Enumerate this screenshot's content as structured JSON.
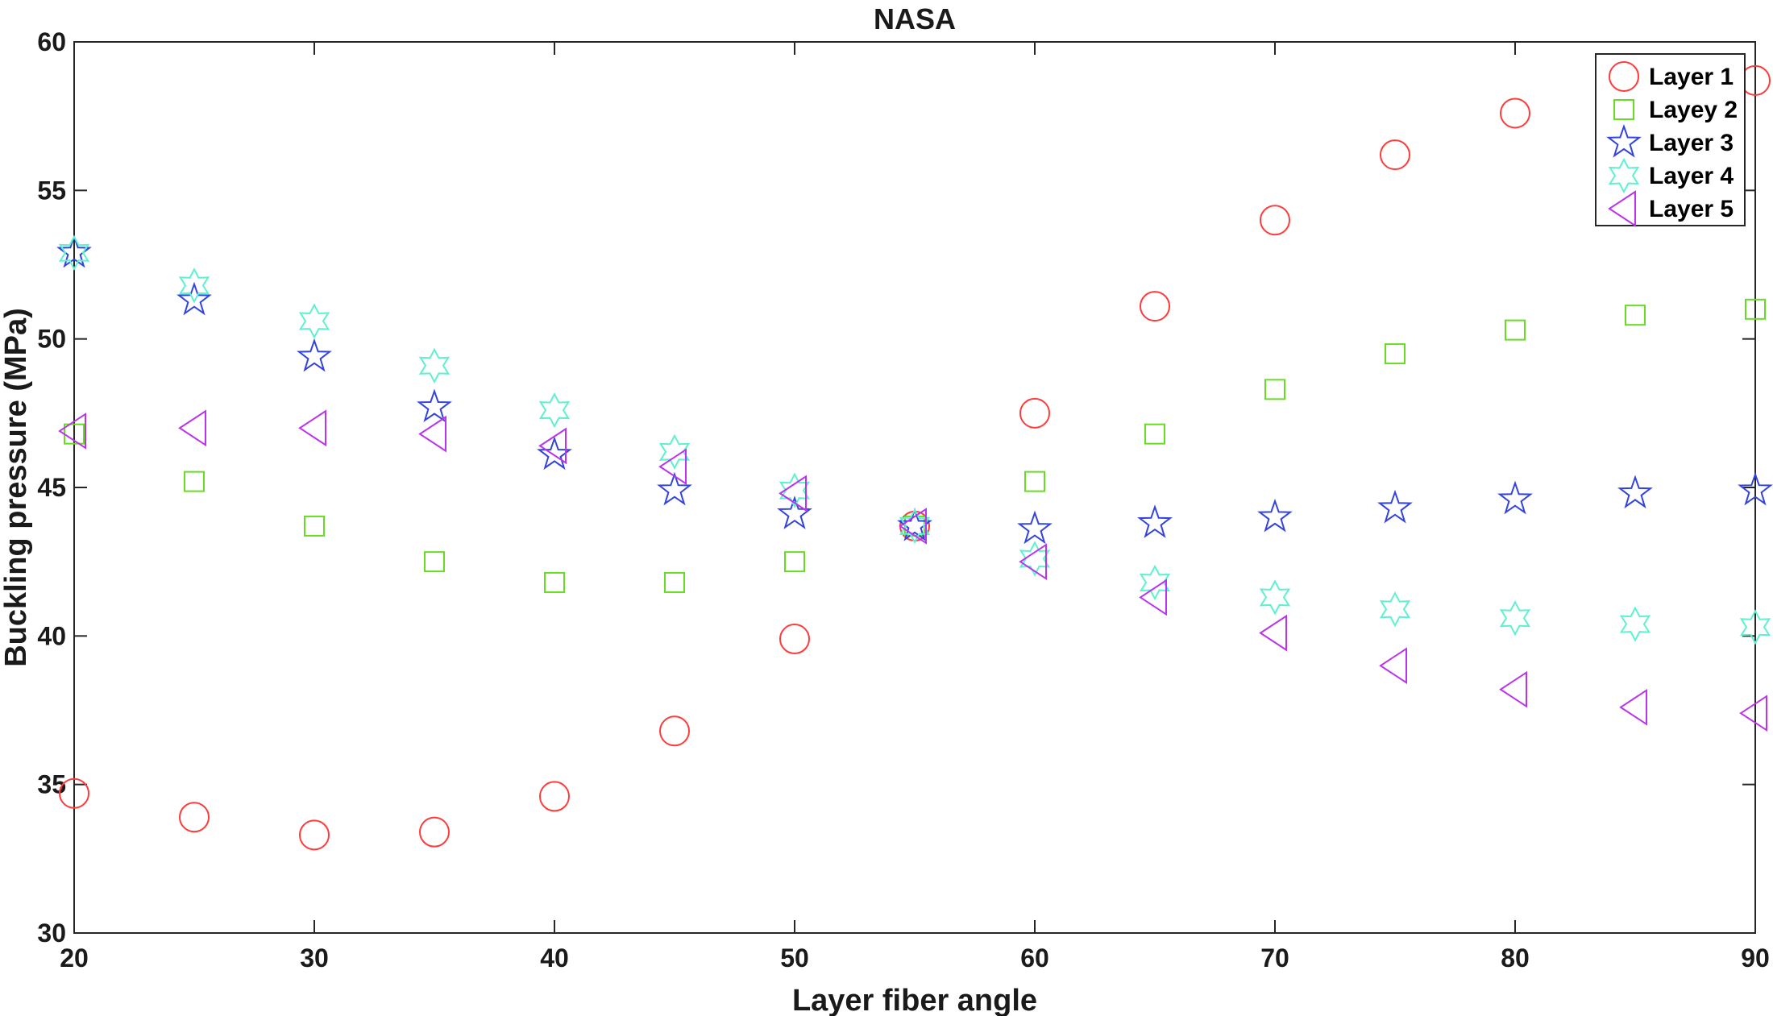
{
  "chart_data": {
    "type": "scatter",
    "title": "NASA",
    "xlabel": "Layer fiber angle",
    "ylabel": "Buckling  pressure (MPa)",
    "xlim": [
      20,
      90
    ],
    "ylim": [
      30,
      60
    ],
    "xticks": [
      20,
      30,
      40,
      50,
      60,
      70,
      80,
      90
    ],
    "yticks": [
      30,
      35,
      40,
      45,
      50,
      55,
      60
    ],
    "grid": false,
    "legend_position": "top-right",
    "x": [
      20,
      25,
      30,
      35,
      40,
      45,
      50,
      55,
      60,
      65,
      70,
      75,
      80,
      85,
      90
    ],
    "series": [
      {
        "name": "Layer 1",
        "marker": "circle",
        "color": "#ff3b3b",
        "values": [
          34.7,
          33.9,
          33.3,
          33.4,
          34.6,
          36.8,
          39.9,
          43.7,
          47.5,
          51.1,
          54.0,
          56.2,
          57.6,
          null,
          58.7
        ]
      },
      {
        "name": "Layey 2",
        "marker": "square",
        "color": "#66dd22",
        "values": [
          46.8,
          45.2,
          43.7,
          42.5,
          41.8,
          41.8,
          42.5,
          43.7,
          45.2,
          46.8,
          48.3,
          49.5,
          50.3,
          50.8,
          51.0
        ]
      },
      {
        "name": "Layer 3",
        "marker": "star5",
        "color": "#3344dd",
        "values": [
          52.9,
          51.3,
          49.4,
          47.7,
          46.1,
          44.9,
          44.1,
          43.7,
          43.6,
          43.8,
          44.0,
          44.3,
          44.6,
          44.8,
          44.9
        ]
      },
      {
        "name": "Layer 4",
        "marker": "star6",
        "color": "#5ff0d0",
        "values": [
          52.9,
          51.8,
          50.6,
          49.1,
          47.6,
          46.2,
          44.9,
          43.7,
          42.6,
          41.8,
          41.3,
          40.9,
          40.6,
          40.4,
          40.3
        ]
      },
      {
        "name": "Layer 5",
        "marker": "triangle-left",
        "color": "#bb33ee",
        "values": [
          46.9,
          47.0,
          47.0,
          46.8,
          46.4,
          45.7,
          44.8,
          43.7,
          42.5,
          41.3,
          40.1,
          39.0,
          38.2,
          37.6,
          37.4
        ]
      }
    ]
  }
}
